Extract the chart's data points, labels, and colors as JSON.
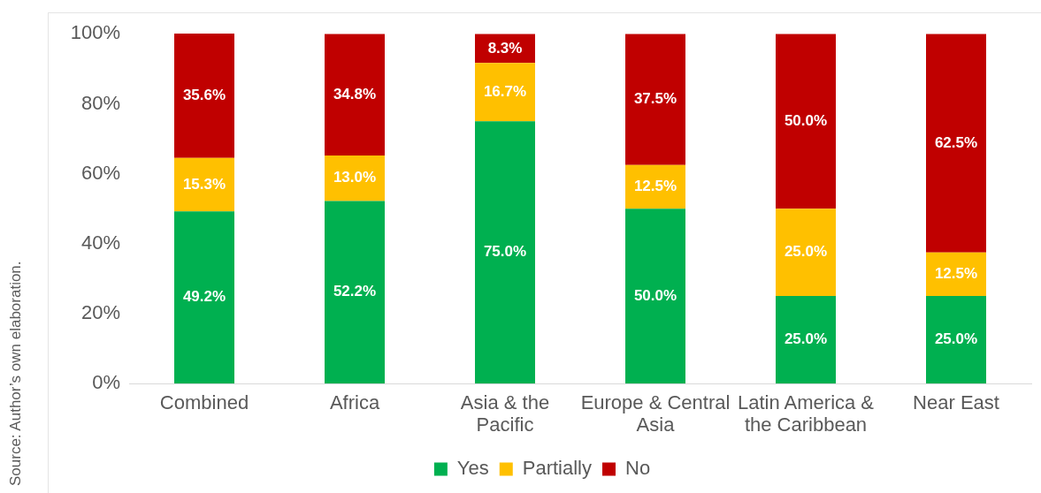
{
  "chart_data": {
    "type": "bar",
    "stacked": true,
    "categories": [
      "Combined",
      "Africa",
      "Asia & the Pacific",
      "Europe & Central Asia",
      "Latin America & the Caribbean",
      "Near East"
    ],
    "series": [
      {
        "name": "Yes",
        "color": "#00b050",
        "values": [
          49.2,
          52.2,
          75.0,
          50.0,
          25.0,
          25.0
        ],
        "value_labels": [
          "49.2%",
          "52.2%",
          "75.0%",
          "50.0%",
          "25.0%",
          "25.0%"
        ]
      },
      {
        "name": "Partially",
        "color": "#ffc000",
        "values": [
          15.3,
          13.0,
          16.7,
          12.5,
          25.0,
          12.5
        ],
        "value_labels": [
          "15.3%",
          "13.0%",
          "16.7%",
          "12.5%",
          "25.0%",
          "12.5%"
        ]
      },
      {
        "name": "No",
        "color": "#c00000",
        "values": [
          35.6,
          34.8,
          8.3,
          37.5,
          50.0,
          62.5
        ],
        "value_labels": [
          "35.6%",
          "34.8%",
          "8.3%",
          "37.5%",
          "50.0%",
          "62.5%"
        ]
      }
    ],
    "ylim": [
      0,
      100.1
    ],
    "yticks": [
      {
        "value": 0,
        "label": "0%"
      },
      {
        "value": 20,
        "label": "20%"
      },
      {
        "value": 40,
        "label": "40%"
      },
      {
        "value": 60,
        "label": "60%"
      },
      {
        "value": 80,
        "label": "80%"
      },
      {
        "value": 100,
        "label": "100%"
      }
    ],
    "legend": "bottom",
    "annotations": [
      "Source: Author’s own elaboration."
    ]
  }
}
